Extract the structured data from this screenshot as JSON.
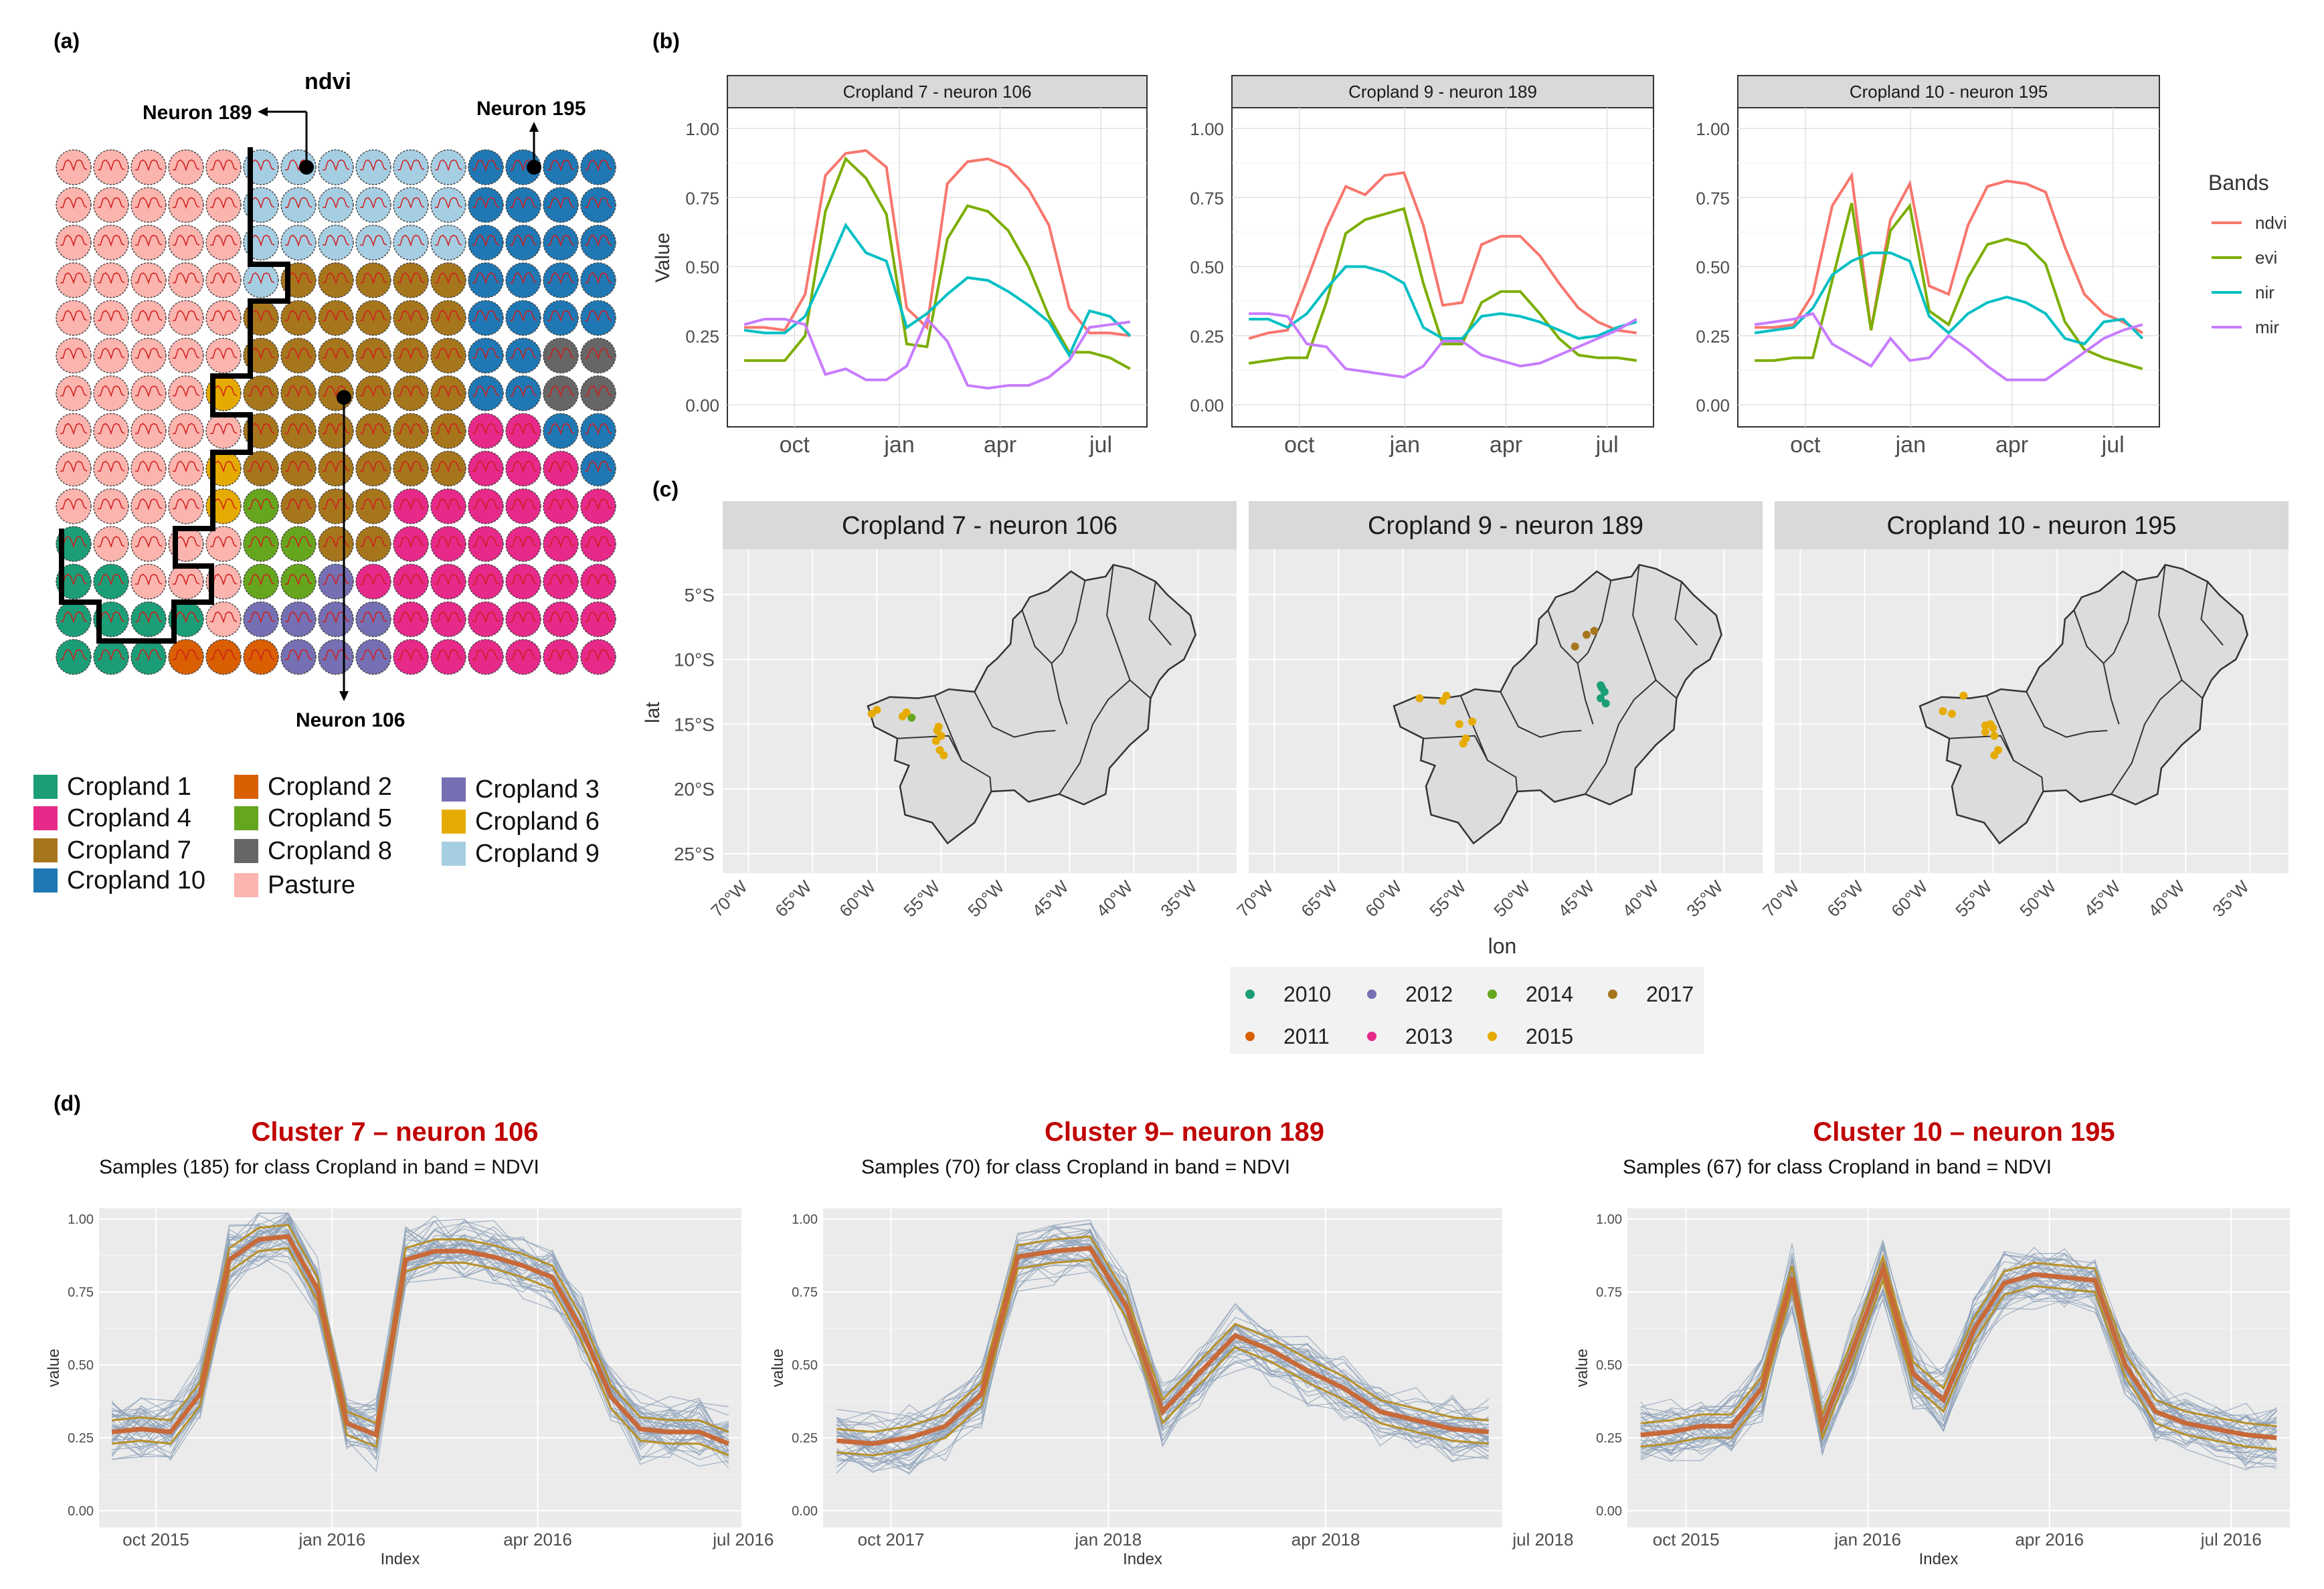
{
  "colors": {
    "cropland_1": "#1b9e77",
    "cropland_2": "#d95f02",
    "cropland_3": "#7570b3",
    "cropland_4": "#e7298a",
    "cropland_5": "#66a61e",
    "cropland_6": "#e6ab02",
    "cropland_7": "#a6761d",
    "cropland_8": "#666666",
    "cropland_9": "#a6cee3",
    "cropland_10": "#1f78b4",
    "pasture": "#fbb4ae",
    "ndvi": "#f8766d",
    "evi": "#7cae00",
    "nir": "#00bfc4",
    "mir": "#c77cff",
    "panel_bg": "#ebebeb",
    "strip_bg": "#d9d9d9",
    "cluster_title": "#c00000",
    "sample_line": "#8ca0b8",
    "median_line": "#c8693a",
    "quantile_line": "#b8902a"
  },
  "panel_a": {
    "label": "(a)",
    "title": "ndvi",
    "neuron_labels": [
      "Neuron 189",
      "Neuron 195",
      "Neuron 106"
    ],
    "grid_rows": [
      "PPPPPBBBBBBTTTT",
      "PPPPPBBBBBBTTTT",
      "PPPPPBBBBBBTTTT",
      "PPPPPB77777TTTT",
      "PPPPP777777TTTT",
      "PPPPP777777TT88",
      "PPPP6777777TT88",
      "PPPPP77777744TT",
      "PPPP6777777444T",
      "PPPP65777444444",
      "1PPPP5577444444",
      "11PPP5534444444",
      "1111P3333444444",
      "1112223334444444"
    ],
    "legend": [
      {
        "label": "Cropland 1",
        "color_key": "cropland_1"
      },
      {
        "label": "Cropland 2",
        "color_key": "cropland_2"
      },
      {
        "label": "Cropland 3",
        "color_key": "cropland_3"
      },
      {
        "label": "Cropland 4",
        "color_key": "cropland_4"
      },
      {
        "label": "Cropland 5",
        "color_key": "cropland_5"
      },
      {
        "label": "Cropland 6",
        "color_key": "cropland_6"
      },
      {
        "label": "Cropland 7",
        "color_key": "cropland_7"
      },
      {
        "label": "Cropland 8",
        "color_key": "cropland_8"
      },
      {
        "label": "Cropland 9",
        "color_key": "cropland_9"
      },
      {
        "label": "Cropland 10",
        "color_key": "cropland_10"
      },
      {
        "label": "Pasture",
        "color_key": "pasture"
      }
    ]
  },
  "chart_data": [
    {
      "id": "b",
      "type": "line",
      "label": "(b)",
      "ylabel": "Value",
      "ylim": [
        0,
        1
      ],
      "yticks": [
        "0.00",
        "0.25",
        "0.50",
        "0.75",
        "1.00"
      ],
      "xticks": [
        "oct",
        "jan",
        "apr",
        "jul"
      ],
      "legend_title": "Bands",
      "legend_position": "right",
      "grid": true,
      "facets": [
        {
          "strip": "Cropland 7 - neuron  106",
          "series": [
            {
              "name": "ndvi",
              "values": [
                0.28,
                0.28,
                0.27,
                0.4,
                0.83,
                0.91,
                0.92,
                0.86,
                0.35,
                0.28,
                0.8,
                0.88,
                0.89,
                0.86,
                0.78,
                0.65,
                0.35,
                0.26,
                0.26,
                0.25
              ]
            },
            {
              "name": "evi",
              "values": [
                0.16,
                0.16,
                0.16,
                0.25,
                0.7,
                0.89,
                0.82,
                0.69,
                0.22,
                0.21,
                0.6,
                0.72,
                0.7,
                0.63,
                0.5,
                0.32,
                0.19,
                0.19,
                0.17,
                0.13
              ]
            },
            {
              "name": "nir",
              "values": [
                0.27,
                0.26,
                0.26,
                0.32,
                0.48,
                0.65,
                0.55,
                0.52,
                0.28,
                0.33,
                0.4,
                0.46,
                0.45,
                0.41,
                0.36,
                0.3,
                0.18,
                0.34,
                0.32,
                0.25
              ]
            },
            {
              "name": "mir",
              "values": [
                0.29,
                0.31,
                0.31,
                0.29,
                0.11,
                0.13,
                0.09,
                0.09,
                0.14,
                0.31,
                0.23,
                0.07,
                0.06,
                0.07,
                0.07,
                0.1,
                0.16,
                0.28,
                0.29,
                0.3
              ]
            }
          ]
        },
        {
          "strip": "Cropland 9 - neuron  189",
          "series": [
            {
              "name": "ndvi",
              "values": [
                0.24,
                0.26,
                0.27,
                0.45,
                0.64,
                0.79,
                0.76,
                0.83,
                0.84,
                0.65,
                0.36,
                0.37,
                0.58,
                0.61,
                0.61,
                0.54,
                0.44,
                0.35,
                0.3,
                0.27,
                0.26
              ]
            },
            {
              "name": "evi",
              "values": [
                0.15,
                0.16,
                0.17,
                0.17,
                0.37,
                0.62,
                0.67,
                0.69,
                0.71,
                0.44,
                0.22,
                0.22,
                0.37,
                0.41,
                0.41,
                0.33,
                0.24,
                0.18,
                0.17,
                0.17,
                0.16
              ]
            },
            {
              "name": "nir",
              "values": [
                0.31,
                0.31,
                0.28,
                0.33,
                0.42,
                0.5,
                0.5,
                0.48,
                0.44,
                0.28,
                0.24,
                0.24,
                0.32,
                0.33,
                0.32,
                0.3,
                0.27,
                0.24,
                0.25,
                0.28,
                0.3
              ]
            },
            {
              "name": "mir",
              "values": [
                0.33,
                0.33,
                0.32,
                0.22,
                0.21,
                0.13,
                0.12,
                0.11,
                0.1,
                0.14,
                0.23,
                0.23,
                0.18,
                0.16,
                0.14,
                0.15,
                0.18,
                0.21,
                0.24,
                0.27,
                0.31
              ]
            }
          ]
        },
        {
          "strip": "Cropland 10 - neuron  195",
          "series": [
            {
              "name": "ndvi",
              "values": [
                0.28,
                0.28,
                0.29,
                0.4,
                0.72,
                0.83,
                0.27,
                0.67,
                0.8,
                0.43,
                0.4,
                0.65,
                0.79,
                0.81,
                0.8,
                0.77,
                0.57,
                0.4,
                0.33,
                0.3,
                0.26
              ]
            },
            {
              "name": "evi",
              "values": [
                0.16,
                0.16,
                0.17,
                0.17,
                0.45,
                0.73,
                0.27,
                0.63,
                0.72,
                0.34,
                0.29,
                0.46,
                0.58,
                0.6,
                0.58,
                0.51,
                0.3,
                0.2,
                0.17,
                0.15,
                0.13
              ]
            },
            {
              "name": "nir",
              "values": [
                0.26,
                0.27,
                0.28,
                0.35,
                0.47,
                0.52,
                0.55,
                0.55,
                0.52,
                0.32,
                0.26,
                0.33,
                0.37,
                0.39,
                0.37,
                0.33,
                0.24,
                0.22,
                0.3,
                0.31,
                0.24
              ]
            },
            {
              "name": "mir",
              "values": [
                0.29,
                0.3,
                0.31,
                0.33,
                0.22,
                0.18,
                0.14,
                0.24,
                0.16,
                0.17,
                0.25,
                0.2,
                0.14,
                0.09,
                0.09,
                0.09,
                0.14,
                0.19,
                0.24,
                0.27,
                0.29
              ]
            }
          ]
        }
      ]
    },
    {
      "id": "c",
      "type": "scatter",
      "label": "(c)",
      "xlabel": "lon",
      "ylabel": "lat",
      "xlim": [
        -72,
        -32
      ],
      "ylim": [
        -26.5,
        -1.5
      ],
      "xticks": [
        "70°W",
        "65°W",
        "60°W",
        "55°W",
        "50°W",
        "45°W",
        "40°W",
        "35°W"
      ],
      "xtick_values": [
        -70,
        -65,
        -60,
        -55,
        -50,
        -45,
        -40,
        -35
      ],
      "yticks": [
        "5°S",
        "10°S",
        "15°S",
        "20°S",
        "25°S"
      ],
      "ytick_values": [
        -5,
        -10,
        -15,
        -20,
        -25
      ],
      "grid": true,
      "legend_position": "bottom",
      "legend": [
        {
          "name": "2010",
          "color": "#1b9e77"
        },
        {
          "name": "2011",
          "color": "#d95f02"
        },
        {
          "name": "2012",
          "color": "#7570b3"
        },
        {
          "name": "2013",
          "color": "#e7298a"
        },
        {
          "name": "2014",
          "color": "#66a61e"
        },
        {
          "name": "2015",
          "color": "#e6ab02"
        },
        {
          "name": "2017",
          "color": "#a6761d"
        }
      ],
      "facets": [
        {
          "strip": "Cropland 7 - neuron 106",
          "points": [
            {
              "lon": -60.4,
              "lat": -14.2,
              "year": "2015"
            },
            {
              "lon": -60.0,
              "lat": -13.9,
              "year": "2015"
            },
            {
              "lon": -58.0,
              "lat": -14.4,
              "year": "2015"
            },
            {
              "lon": -57.3,
              "lat": -14.5,
              "year": "2014"
            },
            {
              "lon": -57.7,
              "lat": -14.1,
              "year": "2015"
            },
            {
              "lon": -55.3,
              "lat": -15.5,
              "year": "2015"
            },
            {
              "lon": -55.0,
              "lat": -15.9,
              "year": "2015"
            },
            {
              "lon": -55.4,
              "lat": -16.3,
              "year": "2015"
            },
            {
              "lon": -55.1,
              "lat": -17.0,
              "year": "2015"
            },
            {
              "lon": -54.8,
              "lat": -17.4,
              "year": "2015"
            },
            {
              "lon": -55.2,
              "lat": -15.2,
              "year": "2015"
            }
          ]
        },
        {
          "strip": "Cropland 9 - neuron 189",
          "points": [
            {
              "lon": -58.7,
              "lat": -13.0,
              "year": "2015"
            },
            {
              "lon": -56.6,
              "lat": -12.8,
              "year": "2015"
            },
            {
              "lon": -56.9,
              "lat": -13.2,
              "year": "2015"
            },
            {
              "lon": -55.6,
              "lat": -15.0,
              "year": "2015"
            },
            {
              "lon": -54.6,
              "lat": -14.8,
              "year": "2015"
            },
            {
              "lon": -55.1,
              "lat": -16.1,
              "year": "2015"
            },
            {
              "lon": -55.3,
              "lat": -16.5,
              "year": "2015"
            },
            {
              "lon": -46.6,
              "lat": -9.0,
              "year": "2017"
            },
            {
              "lon": -45.7,
              "lat": -8.1,
              "year": "2017"
            },
            {
              "lon": -45.1,
              "lat": -7.8,
              "year": "2017"
            },
            {
              "lon": -44.6,
              "lat": -12.0,
              "year": "2010"
            },
            {
              "lon": -44.3,
              "lat": -12.5,
              "year": "2010"
            },
            {
              "lon": -44.6,
              "lat": -13.0,
              "year": "2010"
            },
            {
              "lon": -44.2,
              "lat": -13.4,
              "year": "2010"
            },
            {
              "lon": -44.5,
              "lat": -12.2,
              "year": "2010"
            }
          ]
        },
        {
          "strip": "Cropland 10 - neuron 195",
          "points": [
            {
              "lon": -57.3,
              "lat": -12.8,
              "year": "2015"
            },
            {
              "lon": -58.9,
              "lat": -14.0,
              "year": "2015"
            },
            {
              "lon": -58.2,
              "lat": -14.2,
              "year": "2015"
            },
            {
              "lon": -55.6,
              "lat": -15.1,
              "year": "2015"
            },
            {
              "lon": -55.0,
              "lat": -15.3,
              "year": "2015"
            },
            {
              "lon": -55.6,
              "lat": -15.6,
              "year": "2015"
            },
            {
              "lon": -54.9,
              "lat": -15.9,
              "year": "2015"
            },
            {
              "lon": -54.6,
              "lat": -17.0,
              "year": "2015"
            },
            {
              "lon": -54.9,
              "lat": -17.4,
              "year": "2015"
            },
            {
              "lon": -55.2,
              "lat": -15.0,
              "year": "2015"
            }
          ]
        }
      ]
    },
    {
      "id": "d",
      "type": "line",
      "label": "(d)",
      "xlabel": "Index",
      "ylabel": "value",
      "ylim": [
        0,
        1
      ],
      "yticks": [
        "0.00",
        "0.25",
        "0.50",
        "0.75",
        "1.00"
      ],
      "facets": [
        {
          "cluster_title": "Cluster 7 – neuron 106",
          "subtitle": "Samples (185) for class Cropland in band = NDVI",
          "xticks": [
            "oct 2015",
            "jan 2016",
            "apr 2016",
            "jul 2016"
          ],
          "xtick_positions": [
            1.5,
            7.5,
            14.5,
            21.5
          ],
          "median": [
            0.27,
            0.28,
            0.27,
            0.4,
            0.86,
            0.93,
            0.94,
            0.76,
            0.3,
            0.26,
            0.86,
            0.89,
            0.89,
            0.87,
            0.84,
            0.8,
            0.62,
            0.39,
            0.28,
            0.27,
            0.27,
            0.23
          ]
        },
        {
          "cluster_title": "Cluster 9– neuron 189",
          "subtitle": "Samples (70) for class Cropland in band = NDVI",
          "xticks": [
            "oct 2017",
            "jan 2018",
            "apr 2018",
            "jul 2018"
          ],
          "xtick_positions": [
            1.5,
            7.5,
            13.5,
            19.5
          ],
          "median": [
            0.24,
            0.23,
            0.25,
            0.29,
            0.4,
            0.87,
            0.89,
            0.9,
            0.7,
            0.34,
            0.47,
            0.6,
            0.55,
            0.48,
            0.42,
            0.34,
            0.31,
            0.28,
            0.27
          ]
        },
        {
          "cluster_title": "Cluster 10 – neuron 195",
          "subtitle": "Samples (67) for class Cropland in band = NDVI",
          "xticks": [
            "oct 2015",
            "jan 2016",
            "apr 2016",
            "jul 2016"
          ],
          "xtick_positions": [
            1.5,
            7.5,
            13.5,
            19.5
          ],
          "median": [
            0.26,
            0.27,
            0.29,
            0.29,
            0.42,
            0.8,
            0.29,
            0.55,
            0.83,
            0.47,
            0.38,
            0.62,
            0.78,
            0.81,
            0.8,
            0.79,
            0.5,
            0.34,
            0.3,
            0.28,
            0.26,
            0.25
          ]
        }
      ]
    }
  ]
}
